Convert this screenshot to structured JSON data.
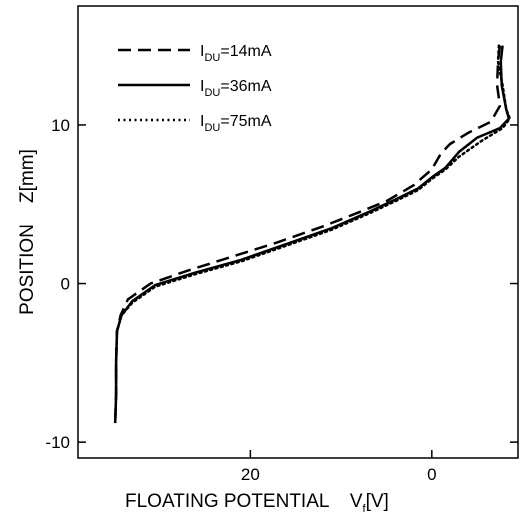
{
  "chart_data": {
    "type": "line",
    "xlabel": "FLOATING POTENTIAL    V",
    "xlabel_sub": "f",
    "xlabel_unit": "[V]",
    "ylabel": "POSITION    Z[mm]",
    "xlim": [
      -9.5,
      39
    ],
    "x_reversed": true,
    "ylim": [
      -11,
      17.5
    ],
    "x_ticks": [
      20,
      0
    ],
    "x_tick_labels": [
      "20",
      "0"
    ],
    "y_ticks": [
      -10,
      0,
      10
    ],
    "y_tick_labels": [
      "-10",
      "0",
      "10"
    ],
    "legend_position": "top-left",
    "grid": false,
    "series": [
      {
        "name": "I",
        "name_sub": "DU",
        "name_rest": "=14mA",
        "style": "dashed",
        "points": [
          [
            -7.5,
            15
          ],
          [
            -7.3,
            14
          ],
          [
            -7.2,
            12.5
          ],
          [
            -7.5,
            11.2
          ],
          [
            -6.5,
            10.2
          ],
          [
            -4,
            9.5
          ],
          [
            -2,
            8.8
          ],
          [
            -1,
            8.2
          ],
          [
            0,
            7.2
          ],
          [
            2,
            6.2
          ],
          [
            5,
            5.2
          ],
          [
            8,
            4.5
          ],
          [
            12,
            3.6
          ],
          [
            17,
            2.6
          ],
          [
            22,
            1.7
          ],
          [
            27,
            0.8
          ],
          [
            31,
            0
          ],
          [
            33.5,
            -1
          ],
          [
            34.3,
            -2
          ],
          [
            34.7,
            -3
          ],
          [
            34.8,
            -5
          ],
          [
            34.8,
            -7
          ],
          [
            34.9,
            -8.8
          ]
        ]
      },
      {
        "name": "I",
        "name_sub": "DU",
        "name_rest": "=36mA",
        "style": "solid",
        "points": [
          [
            -7.8,
            15
          ],
          [
            -7.6,
            14
          ],
          [
            -7.7,
            12.5
          ],
          [
            -8.2,
            11
          ],
          [
            -8.5,
            10.4
          ],
          [
            -7.5,
            9.8
          ],
          [
            -5,
            9.2
          ],
          [
            -3,
            8.3
          ],
          [
            -1.5,
            7.3
          ],
          [
            0,
            6.7
          ],
          [
            1.5,
            6
          ],
          [
            4,
            5.3
          ],
          [
            7,
            4.5
          ],
          [
            11,
            3.5
          ],
          [
            16,
            2.5
          ],
          [
            21,
            1.5
          ],
          [
            26,
            0.7
          ],
          [
            30.5,
            -0.1
          ],
          [
            33,
            -1.1
          ],
          [
            34.2,
            -2
          ],
          [
            34.7,
            -3
          ],
          [
            34.8,
            -5
          ],
          [
            34.8,
            -7
          ],
          [
            34.9,
            -8.8
          ]
        ]
      },
      {
        "name": "I",
        "name_sub": "DU",
        "name_rest": "=75mA",
        "style": "dotted",
        "points": [
          [
            -7.4,
            15
          ],
          [
            -7.3,
            14
          ],
          [
            -7.8,
            12.5
          ],
          [
            -8.2,
            11
          ],
          [
            -8.6,
            10.4
          ],
          [
            -7.8,
            9.8
          ],
          [
            -5.5,
            9
          ],
          [
            -3,
            8
          ],
          [
            -1.5,
            7.2
          ],
          [
            0,
            6.6
          ],
          [
            1.5,
            5.9
          ],
          [
            4,
            5.2
          ],
          [
            7,
            4.4
          ],
          [
            11,
            3.4
          ],
          [
            16,
            2.4
          ],
          [
            21,
            1.4
          ],
          [
            26,
            0.6
          ],
          [
            30.5,
            -0.2
          ],
          [
            33,
            -1.2
          ],
          [
            34.2,
            -2
          ],
          [
            34.7,
            -3
          ],
          [
            34.8,
            -5
          ],
          [
            34.8,
            -7
          ],
          [
            34.9,
            -8.6
          ]
        ]
      }
    ]
  }
}
